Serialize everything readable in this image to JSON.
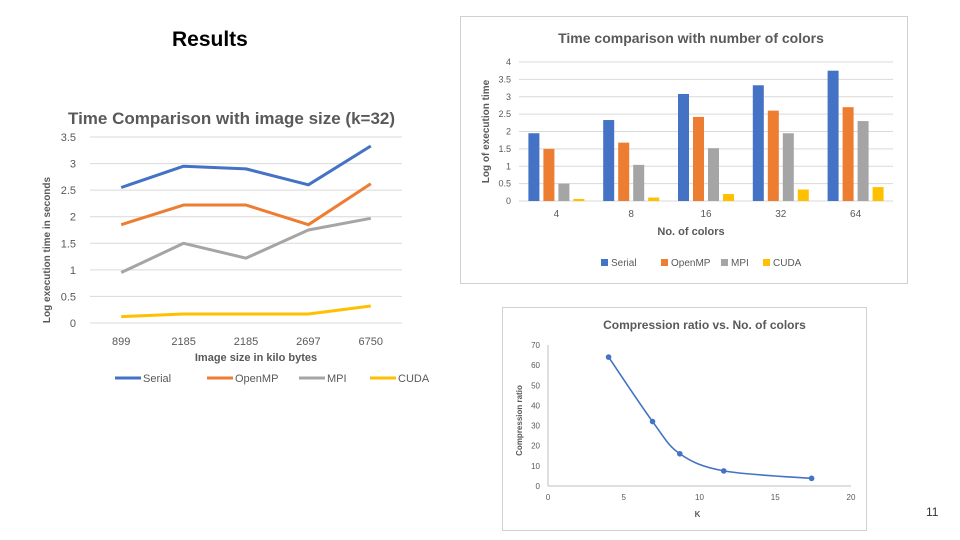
{
  "slide": {
    "title": "Results",
    "page_number": "11"
  },
  "chart_data": [
    {
      "type": "line",
      "title": "Time Comparison  with image size (k=32)",
      "xlabel": "Image size in kilo bytes",
      "ylabel": "Log execution time in seconds",
      "categories": [
        "899",
        "2185",
        "2185",
        "2697",
        "6750"
      ],
      "ylim": [
        0,
        3.5
      ],
      "yticks": [
        "0",
        "0.5",
        "1",
        "1.5",
        "2",
        "2.5",
        "3",
        "3.5"
      ],
      "ytick_values": [
        0,
        0.5,
        1,
        1.5,
        2,
        2.5,
        3,
        3.5
      ],
      "grid": true,
      "legend": "bottom",
      "series": [
        {
          "name": "Serial",
          "color": "#4472C4",
          "values": [
            2.55,
            2.95,
            2.9,
            2.6,
            3.33
          ]
        },
        {
          "name": "OpenMP",
          "color": "#ED7D31",
          "values": [
            1.85,
            2.22,
            2.22,
            1.85,
            2.62
          ]
        },
        {
          "name": "MPI",
          "color": "#A5A5A5",
          "values": [
            0.95,
            1.5,
            1.22,
            1.75,
            1.97
          ]
        },
        {
          "name": "CUDA",
          "color": "#FFC000",
          "values": [
            0.12,
            0.17,
            0.17,
            0.17,
            0.32
          ]
        }
      ]
    },
    {
      "type": "bar",
      "title": "Time comparison with number of colors",
      "xlabel": "No. of colors",
      "ylabel": "Log of execution time",
      "categories": [
        "4",
        "8",
        "16",
        "32",
        "64"
      ],
      "ylim": [
        0,
        4
      ],
      "yticks": [
        "0",
        "0.5",
        "1",
        "1.5",
        "2",
        "2.5",
        "3",
        "3.5",
        "4"
      ],
      "ytick_values": [
        0,
        0.5,
        1,
        1.5,
        2,
        2.5,
        3,
        3.5,
        4
      ],
      "grid": true,
      "legend": "bottom",
      "series": [
        {
          "name": "Serial",
          "color": "#4472C4",
          "values": [
            1.95,
            2.33,
            3.08,
            3.33,
            3.75
          ]
        },
        {
          "name": "OpenMP",
          "color": "#ED7D31",
          "values": [
            1.5,
            1.68,
            2.42,
            2.6,
            2.7
          ]
        },
        {
          "name": "MPI",
          "color": "#A5A5A5",
          "values": [
            0.5,
            1.04,
            1.52,
            1.95,
            2.3
          ]
        },
        {
          "name": "CUDA",
          "color": "#FFC000",
          "values": [
            0.06,
            0.1,
            0.2,
            0.33,
            0.4
          ]
        }
      ]
    },
    {
      "type": "scatter",
      "title": "Compression ratio vs. No. of colors",
      "xlabel": "K",
      "ylabel": "Compression ratio",
      "xlim": [
        0,
        20
      ],
      "ylim": [
        0,
        70
      ],
      "xticks": [
        "0",
        "5",
        "10",
        "15",
        "20"
      ],
      "xtick_values": [
        0,
        5,
        10,
        15,
        20
      ],
      "yticks": [
        "0",
        "10",
        "20",
        "30",
        "40",
        "50",
        "60",
        "70"
      ],
      "ytick_values": [
        0,
        10,
        20,
        30,
        40,
        50,
        60,
        70
      ],
      "grid": false,
      "color": "#4472C4",
      "points": [
        {
          "x": 4,
          "y": 64
        },
        {
          "x": 6.9,
          "y": 32
        },
        {
          "x": 8.7,
          "y": 16
        },
        {
          "x": 11.6,
          "y": 7.5
        },
        {
          "x": 17.4,
          "y": 3.8
        }
      ]
    }
  ]
}
